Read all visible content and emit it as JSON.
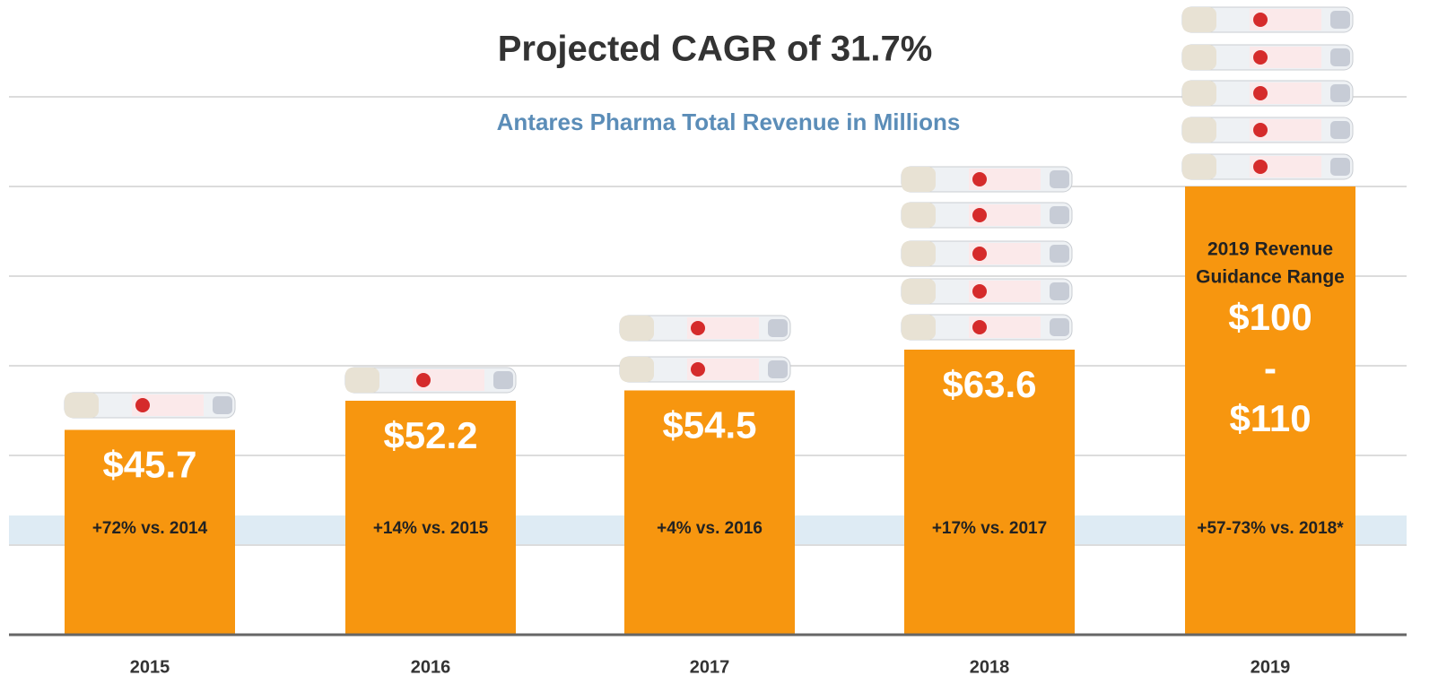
{
  "chart_data": {
    "type": "bar",
    "title": "Projected CAGR of 31.7%",
    "subtitle": "Antares Pharma Total Revenue in Millions",
    "categories": [
      "2015",
      "2016",
      "2017",
      "2018",
      "2019"
    ],
    "values": [
      45.7,
      52.2,
      54.5,
      63.6,
      100
    ],
    "value_labels": [
      "$45.7",
      "$52.2",
      "$54.5",
      "$63.6",
      "$100"
    ],
    "growth_labels": [
      "+72% vs. 2014",
      "+14% vs. 2015",
      "+4% vs. 2016",
      "+17% vs. 2017",
      "+57-73% vs. 2018*"
    ],
    "guidance": {
      "label_lines": [
        "2019 Revenue",
        "Guidance Range"
      ],
      "separator": "-",
      "high_label": "$110"
    },
    "color": "#f7960f",
    "ylim": [
      0,
      140
    ],
    "yticks": [
      20,
      40,
      60,
      80,
      100,
      120
    ],
    "tick_labels": false,
    "grid": true
  }
}
